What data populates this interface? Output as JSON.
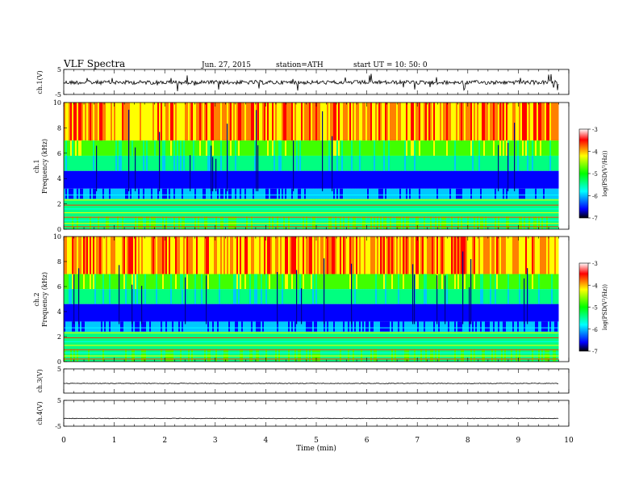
{
  "header": {
    "title": "VLF  Spectra",
    "date": "Jun. 27, 2015",
    "station": "station=ATH",
    "start": "start  UT  =   10: 50: 0"
  },
  "chart_data": [
    {
      "type": "line",
      "name": "ch1-waveform",
      "ylabel": "ch.1(V)",
      "ylim": [
        -5,
        5
      ],
      "ytick_labels": [
        "5",
        "-5"
      ],
      "xlim": [
        0,
        10
      ],
      "baseline": -0.2,
      "color": "#000000"
    },
    {
      "type": "heatmap",
      "name": "ch1-spectrogram",
      "ylabel": "Frequency  (kHz)",
      "channel_label": "ch.1",
      "ylim": [
        0,
        10
      ],
      "ytick_labels": [
        "0",
        "2",
        "4",
        "6",
        "8",
        "10"
      ],
      "xlim": [
        0,
        10
      ],
      "data_end_min": 9.8,
      "colorbar": {
        "label": "log(PSD(V²/Hz))",
        "range": [
          -7,
          -3
        ],
        "tick_labels": [
          "-3",
          "-4",
          "-5",
          "-6",
          "-7"
        ],
        "colors": [
          "#000000",
          "#0000ff",
          "#00ffff",
          "#00ff00",
          "#ffff00",
          "#ff0000",
          "#ffffff"
        ]
      }
    },
    {
      "type": "heatmap",
      "name": "ch2-spectrogram",
      "ylabel": "Frequency  (kHz)",
      "channel_label": "ch.2",
      "ylim": [
        0,
        10
      ],
      "ytick_labels": [
        "0",
        "2",
        "4",
        "6",
        "8",
        "10"
      ],
      "xlim": [
        0,
        10
      ],
      "data_end_min": 9.8,
      "colorbar": {
        "label": "log(PSD(V²/Hz))",
        "range": [
          -7,
          -3
        ],
        "tick_labels": [
          "-3",
          "-4",
          "-5",
          "-6",
          "-7"
        ],
        "colors": [
          "#000000",
          "#0000ff",
          "#00ffff",
          "#00ff00",
          "#ffff00",
          "#ff0000",
          "#ffffff"
        ]
      }
    },
    {
      "type": "line",
      "name": "ch3-waveform",
      "ylabel": "ch.3(V)",
      "ylim": [
        -5,
        5
      ],
      "ytick_labels": [
        "5"
      ],
      "xlim": [
        0,
        10
      ],
      "baseline": -1.0,
      "color": "#000000"
    },
    {
      "type": "line",
      "name": "ch4-waveform",
      "ylabel": "ch.4(V)",
      "ylim": [
        -5,
        5
      ],
      "ytick_labels": [
        "5",
        "-5"
      ],
      "xlim": [
        0,
        10
      ],
      "baseline": -2.0,
      "color": "#000000"
    }
  ],
  "x_axis": {
    "label": "Time  (min)",
    "range": [
      0,
      10
    ],
    "tick_labels": [
      "0",
      "1",
      "2",
      "3",
      "4",
      "5",
      "6",
      "7",
      "8",
      "9",
      "10"
    ]
  }
}
